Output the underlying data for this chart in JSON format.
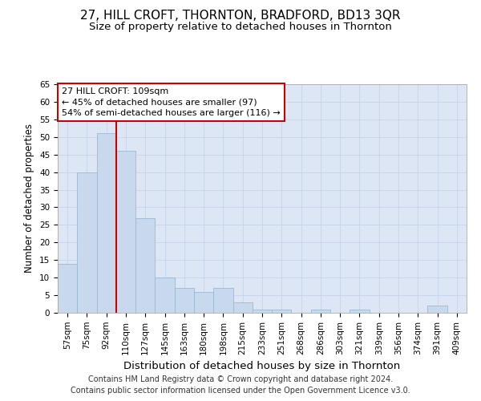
{
  "title": "27, HILL CROFT, THORNTON, BRADFORD, BD13 3QR",
  "subtitle": "Size of property relative to detached houses in Thornton",
  "xlabel": "Distribution of detached houses by size in Thornton",
  "ylabel": "Number of detached properties",
  "categories": [
    "57sqm",
    "75sqm",
    "92sqm",
    "110sqm",
    "127sqm",
    "145sqm",
    "163sqm",
    "180sqm",
    "198sqm",
    "215sqm",
    "233sqm",
    "251sqm",
    "268sqm",
    "286sqm",
    "303sqm",
    "321sqm",
    "339sqm",
    "356sqm",
    "374sqm",
    "391sqm",
    "409sqm"
  ],
  "values": [
    14,
    40,
    51,
    46,
    27,
    10,
    7,
    6,
    7,
    3,
    1,
    1,
    0,
    1,
    0,
    1,
    0,
    0,
    0,
    2,
    0
  ],
  "bar_color": "#c9d9ed",
  "bar_edgecolor": "#9ab8d4",
  "grid_color": "#c8d4e8",
  "background_color": "#dce6f5",
  "annotation_box_facecolor": "#ffffff",
  "annotation_border_color": "#cc0000",
  "vline_color": "#cc0000",
  "annotation_line1": "27 HILL CROFT: 109sqm",
  "annotation_line2": "← 45% of detached houses are smaller (97)",
  "annotation_line3": "54% of semi-detached houses are larger (116) →",
  "vline_x": 2.5,
  "ylim": [
    0,
    65
  ],
  "yticks": [
    0,
    5,
    10,
    15,
    20,
    25,
    30,
    35,
    40,
    45,
    50,
    55,
    60,
    65
  ],
  "footer_line1": "Contains HM Land Registry data © Crown copyright and database right 2024.",
  "footer_line2": "Contains public sector information licensed under the Open Government Licence v3.0.",
  "title_fontsize": 11,
  "subtitle_fontsize": 9.5,
  "xlabel_fontsize": 9.5,
  "ylabel_fontsize": 8.5,
  "tick_fontsize": 7.5,
  "annotation_fontsize": 8,
  "footer_fontsize": 7
}
